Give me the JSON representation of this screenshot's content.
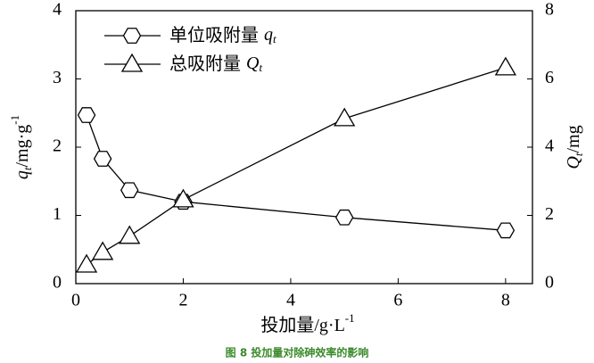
{
  "chart_data": {
    "type": "line",
    "caption": "图 8 投加量对除砷效率的影响",
    "xlabel": {
      "text": "投加量/g·L",
      "sup": "-1"
    },
    "ylabel": {
      "symbol": "q",
      "sub": "t",
      "text": "/mg·g",
      "sup": "-1"
    },
    "y2label": {
      "symbol": "Q",
      "sub": "t",
      "text": "/mg"
    },
    "xlim": [
      0,
      8.5
    ],
    "xticks": [
      0,
      2,
      4,
      6,
      8
    ],
    "ylim": [
      0,
      4
    ],
    "yticks": [
      0,
      1,
      2,
      3,
      4
    ],
    "y2lim": [
      0,
      8
    ],
    "y2ticks": [
      0,
      2,
      4,
      6,
      8
    ],
    "legend": "upper left",
    "series": [
      {
        "name": "单位吸附量",
        "symbol": "q",
        "sub": "t",
        "color": "#000000",
        "marker": "hexagon",
        "x": [
          0.2,
          0.5,
          1,
          2,
          5,
          8
        ],
        "values": [
          2.47,
          1.83,
          1.37,
          1.2,
          0.97,
          0.78
        ]
      },
      {
        "name": "总吸附量",
        "symbol": "Q",
        "sub": "t",
        "color": "#000000",
        "marker": "triangle",
        "axis": "y2",
        "x": [
          0.2,
          0.5,
          1,
          2,
          5,
          8
        ],
        "values": [
          0.55,
          0.92,
          1.39,
          2.46,
          4.84,
          6.33
        ]
      }
    ]
  }
}
